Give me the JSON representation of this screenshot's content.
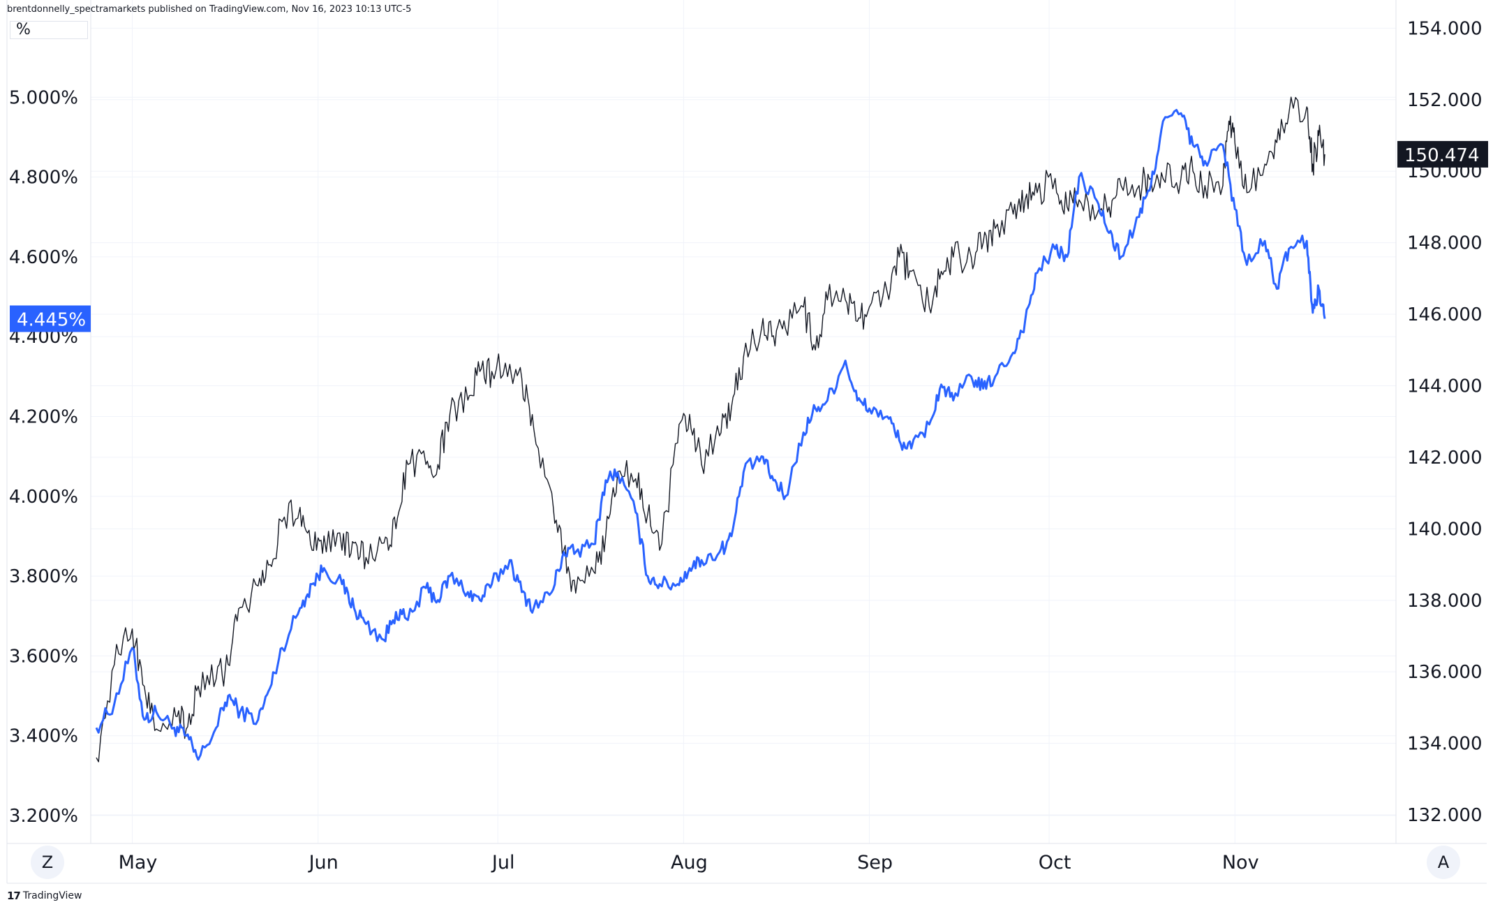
{
  "header": {
    "published_text": "brentdonnelly_spectramarkets published on TradingView.com, Nov 16, 2023 10:13 UTC-5"
  },
  "left_axis": {
    "unit_label": "%",
    "ticks": [
      "5.000%",
      "4.800%",
      "4.600%",
      "4.400%",
      "4.200%",
      "4.000%",
      "3.800%",
      "3.600%",
      "3.400%",
      "3.200%"
    ],
    "current_label": "4.445%",
    "current_color": "#2962ff"
  },
  "right_axis": {
    "ticks": [
      "154.000",
      "152.000",
      "150.000",
      "148.000",
      "146.000",
      "144.000",
      "142.000",
      "140.000",
      "138.000",
      "136.000",
      "134.000",
      "132.000"
    ],
    "current_label": "150.474",
    "current_color": "#131722"
  },
  "x_axis": {
    "ticks": [
      "May",
      "Jun",
      "Jul",
      "Aug",
      "Sep",
      "Oct",
      "Nov"
    ]
  },
  "controls": {
    "zoom_button": "Z",
    "auto_button": "A"
  },
  "footer": {
    "brand": "TradingView"
  },
  "chart_data": {
    "type": "line",
    "grid": true,
    "x_range": [
      "2023-04-25",
      "2023-11-16"
    ],
    "series": [
      {
        "axis": "left",
        "color": "#2962ff",
        "ylim": [
          3.13,
          5.2
        ],
        "points": [
          [
            "2023-04-25",
            3.42
          ],
          [
            "2023-04-28",
            3.48
          ],
          [
            "2023-05-01",
            3.62
          ],
          [
            "2023-05-03",
            3.44
          ],
          [
            "2023-05-05",
            3.46
          ],
          [
            "2023-05-08",
            3.42
          ],
          [
            "2023-05-10",
            3.4
          ],
          [
            "2023-05-12",
            3.34
          ],
          [
            "2023-05-15",
            3.42
          ],
          [
            "2023-05-17",
            3.5
          ],
          [
            "2023-05-19",
            3.46
          ],
          [
            "2023-05-22",
            3.44
          ],
          [
            "2023-05-24",
            3.52
          ],
          [
            "2023-05-26",
            3.62
          ],
          [
            "2023-05-29",
            3.72
          ],
          [
            "2023-05-31",
            3.78
          ],
          [
            "2023-06-02",
            3.82
          ],
          [
            "2023-06-05",
            3.78
          ],
          [
            "2023-06-07",
            3.72
          ],
          [
            "2023-06-09",
            3.68
          ],
          [
            "2023-06-12",
            3.64
          ],
          [
            "2023-06-14",
            3.71
          ],
          [
            "2023-06-16",
            3.69
          ],
          [
            "2023-06-19",
            3.77
          ],
          [
            "2023-06-21",
            3.74
          ],
          [
            "2023-06-23",
            3.8
          ],
          [
            "2023-06-26",
            3.76
          ],
          [
            "2023-06-28",
            3.74
          ],
          [
            "2023-06-30",
            3.78
          ],
          [
            "2023-07-03",
            3.84
          ],
          [
            "2023-07-05",
            3.76
          ],
          [
            "2023-07-07",
            3.72
          ],
          [
            "2023-07-10",
            3.76
          ],
          [
            "2023-07-12",
            3.86
          ],
          [
            "2023-07-14",
            3.86
          ],
          [
            "2023-07-17",
            3.88
          ],
          [
            "2023-07-19",
            4.04
          ],
          [
            "2023-07-21",
            4.06
          ],
          [
            "2023-07-24",
            3.96
          ],
          [
            "2023-07-26",
            3.8
          ],
          [
            "2023-07-28",
            3.78
          ],
          [
            "2023-07-31",
            3.78
          ],
          [
            "2023-08-02",
            3.82
          ],
          [
            "2023-08-04",
            3.84
          ],
          [
            "2023-08-07",
            3.86
          ],
          [
            "2023-08-09",
            3.9
          ],
          [
            "2023-08-11",
            4.06
          ],
          [
            "2023-08-14",
            4.1
          ],
          [
            "2023-08-16",
            4.04
          ],
          [
            "2023-08-18",
            4.0
          ],
          [
            "2023-08-21",
            4.16
          ],
          [
            "2023-08-23",
            4.22
          ],
          [
            "2023-08-25",
            4.24
          ],
          [
            "2023-08-28",
            4.34
          ],
          [
            "2023-08-30",
            4.24
          ],
          [
            "2023-09-01",
            4.22
          ],
          [
            "2023-09-04",
            4.2
          ],
          [
            "2023-09-06",
            4.14
          ],
          [
            "2023-09-08",
            4.12
          ],
          [
            "2023-09-11",
            4.18
          ],
          [
            "2023-09-13",
            4.28
          ],
          [
            "2023-09-15",
            4.24
          ],
          [
            "2023-09-18",
            4.3
          ],
          [
            "2023-09-20",
            4.27
          ],
          [
            "2023-09-22",
            4.3
          ],
          [
            "2023-09-25",
            4.36
          ],
          [
            "2023-09-27",
            4.44
          ],
          [
            "2023-09-29",
            4.56
          ],
          [
            "2023-10-02",
            4.62
          ],
          [
            "2023-10-04",
            4.6
          ],
          [
            "2023-10-06",
            4.8
          ],
          [
            "2023-10-09",
            4.74
          ],
          [
            "2023-10-11",
            4.66
          ],
          [
            "2023-10-13",
            4.6
          ],
          [
            "2023-10-16",
            4.7
          ],
          [
            "2023-10-18",
            4.78
          ],
          [
            "2023-10-20",
            4.94
          ],
          [
            "2023-10-23",
            4.96
          ],
          [
            "2023-10-25",
            4.88
          ],
          [
            "2023-10-27",
            4.84
          ],
          [
            "2023-10-30",
            4.88
          ],
          [
            "2023-11-01",
            4.72
          ],
          [
            "2023-11-03",
            4.58
          ],
          [
            "2023-11-06",
            4.64
          ],
          [
            "2023-11-08",
            4.52
          ],
          [
            "2023-11-10",
            4.62
          ],
          [
            "2023-11-13",
            4.64
          ],
          [
            "2023-11-14",
            4.46
          ],
          [
            "2023-11-15",
            4.52
          ],
          [
            "2023-11-16",
            4.445
          ]
        ]
      },
      {
        "axis": "right",
        "color": "#131722",
        "ylim": [
          131.2,
          154.3
        ],
        "points": [
          [
            "2023-04-25",
            133.6
          ],
          [
            "2023-04-28",
            136.2
          ],
          [
            "2023-05-01",
            137.2
          ],
          [
            "2023-05-03",
            135.6
          ],
          [
            "2023-05-05",
            134.4
          ],
          [
            "2023-05-08",
            135.0
          ],
          [
            "2023-05-10",
            134.4
          ],
          [
            "2023-05-12",
            135.6
          ],
          [
            "2023-05-15",
            135.8
          ],
          [
            "2023-05-17",
            136.2
          ],
          [
            "2023-05-19",
            137.8
          ],
          [
            "2023-05-22",
            138.4
          ],
          [
            "2023-05-24",
            139.0
          ],
          [
            "2023-05-26",
            140.2
          ],
          [
            "2023-05-29",
            140.6
          ],
          [
            "2023-05-31",
            139.4
          ],
          [
            "2023-06-02",
            139.8
          ],
          [
            "2023-06-05",
            139.4
          ],
          [
            "2023-06-07",
            139.6
          ],
          [
            "2023-06-09",
            139.2
          ],
          [
            "2023-06-12",
            139.6
          ],
          [
            "2023-06-14",
            140.0
          ],
          [
            "2023-06-16",
            141.8
          ],
          [
            "2023-06-19",
            141.8
          ],
          [
            "2023-06-21",
            141.8
          ],
          [
            "2023-06-23",
            143.2
          ],
          [
            "2023-06-26",
            143.6
          ],
          [
            "2023-06-28",
            144.4
          ],
          [
            "2023-06-30",
            144.4
          ],
          [
            "2023-07-03",
            144.6
          ],
          [
            "2023-07-05",
            144.2
          ],
          [
            "2023-07-07",
            142.8
          ],
          [
            "2023-07-10",
            141.0
          ],
          [
            "2023-07-12",
            139.4
          ],
          [
            "2023-07-14",
            138.2
          ],
          [
            "2023-07-17",
            138.8
          ],
          [
            "2023-07-19",
            139.8
          ],
          [
            "2023-07-21",
            141.6
          ],
          [
            "2023-07-24",
            141.4
          ],
          [
            "2023-07-26",
            140.4
          ],
          [
            "2023-07-28",
            139.4
          ],
          [
            "2023-07-31",
            142.4
          ],
          [
            "2023-08-02",
            143.2
          ],
          [
            "2023-08-04",
            141.8
          ],
          [
            "2023-08-07",
            142.6
          ],
          [
            "2023-08-09",
            143.4
          ],
          [
            "2023-08-11",
            144.8
          ],
          [
            "2023-08-14",
            145.6
          ],
          [
            "2023-08-16",
            145.4
          ],
          [
            "2023-08-18",
            145.6
          ],
          [
            "2023-08-21",
            146.2
          ],
          [
            "2023-08-23",
            145.0
          ],
          [
            "2023-08-25",
            146.4
          ],
          [
            "2023-08-28",
            146.4
          ],
          [
            "2023-08-30",
            145.8
          ],
          [
            "2023-09-01",
            146.2
          ],
          [
            "2023-09-04",
            146.6
          ],
          [
            "2023-09-06",
            147.6
          ],
          [
            "2023-09-08",
            147.2
          ],
          [
            "2023-09-11",
            146.2
          ],
          [
            "2023-09-13",
            147.2
          ],
          [
            "2023-09-15",
            147.6
          ],
          [
            "2023-09-18",
            147.6
          ],
          [
            "2023-09-20",
            148.0
          ],
          [
            "2023-09-22",
            148.4
          ],
          [
            "2023-09-25",
            148.8
          ],
          [
            "2023-09-27",
            149.2
          ],
          [
            "2023-09-29",
            149.4
          ],
          [
            "2023-10-02",
            149.8
          ],
          [
            "2023-10-04",
            149.0
          ],
          [
            "2023-10-06",
            149.2
          ],
          [
            "2023-10-09",
            148.8
          ],
          [
            "2023-10-11",
            149.0
          ],
          [
            "2023-10-13",
            149.6
          ],
          [
            "2023-10-16",
            149.6
          ],
          [
            "2023-10-18",
            149.8
          ],
          [
            "2023-10-20",
            149.8
          ],
          [
            "2023-10-23",
            149.8
          ],
          [
            "2023-10-25",
            150.0
          ],
          [
            "2023-10-27",
            149.6
          ],
          [
            "2023-10-30",
            149.6
          ],
          [
            "2023-10-31",
            151.4
          ],
          [
            "2023-11-01",
            150.8
          ],
          [
            "2023-11-03",
            149.4
          ],
          [
            "2023-11-06",
            150.2
          ],
          [
            "2023-11-08",
            150.8
          ],
          [
            "2023-11-10",
            151.6
          ],
          [
            "2023-11-13",
            151.8
          ],
          [
            "2023-11-14",
            150.2
          ],
          [
            "2023-11-15",
            151.0
          ],
          [
            "2023-11-16",
            150.474
          ]
        ]
      }
    ]
  }
}
